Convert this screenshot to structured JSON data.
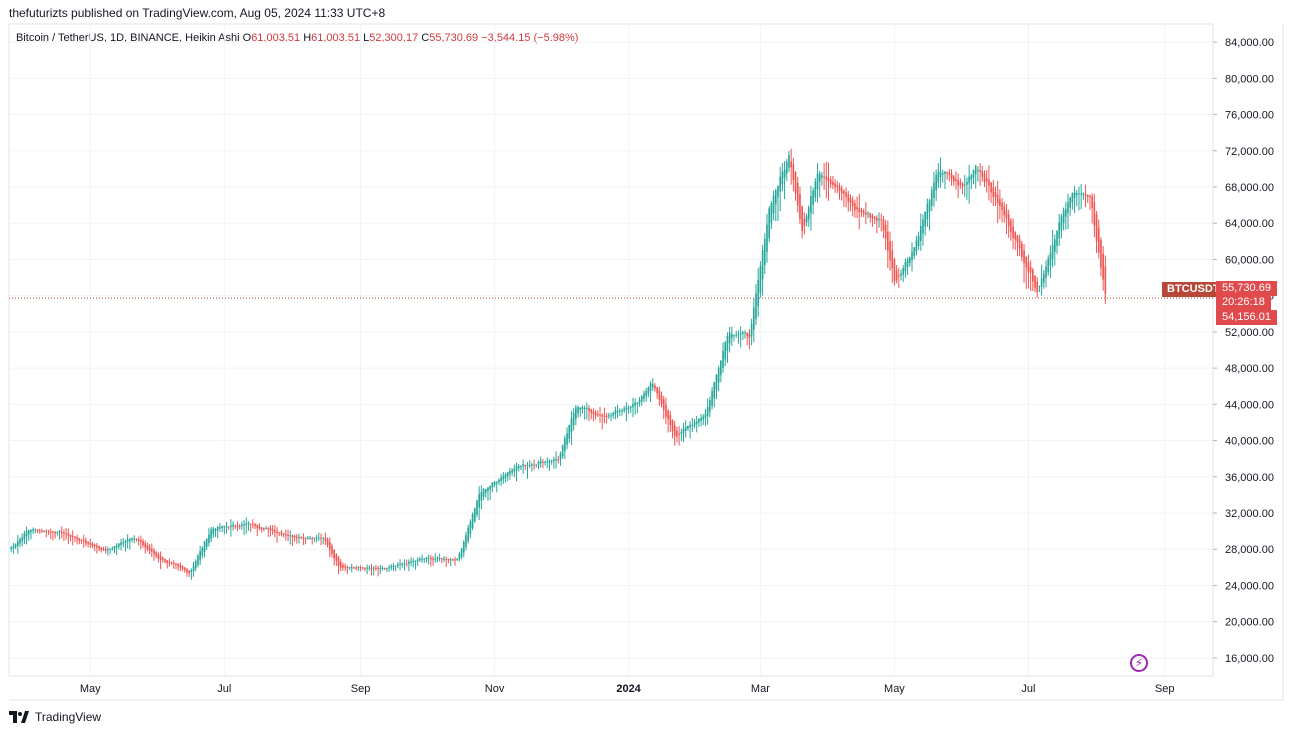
{
  "header": {
    "caption": "thefuturizts published on TradingView.com, Aug 05, 2024 11:33 UTC+8"
  },
  "legend": {
    "symbol": "Bitcoin / TetherUS, 1D, BINANCE, Heikin Ashi",
    "o_label": "O",
    "o_value": "61,003.51",
    "h_label": "H",
    "h_value": "61,003.51",
    "l_label": "L",
    "l_value": "52,300.17",
    "c_label": "C",
    "c_value": "55,730.69",
    "change": "−3,544.15 (−5.98%)"
  },
  "price_scale": {
    "ticker_badge": "BTCUSDT",
    "last_price": "55,730.69",
    "countdown": "20:26:18",
    "low_marker": "54,156.01"
  },
  "footer": {
    "brand": "TradingView"
  },
  "colors": {
    "up": "#26a69a",
    "down": "#ef5350",
    "grid": "#f0f3fa",
    "axis_text": "#131722",
    "price_line": "#b8473a",
    "accent": "#9c27b0"
  },
  "icons": {
    "brand": "tradingview-logo-icon",
    "alert": "lightning-bolt-icon"
  },
  "chart_data": {
    "type": "candlestick",
    "subtype": "heikin-ashi",
    "y_ticks": [
      "84,000.00",
      "80,000.00",
      "76,000.00",
      "72,000.00",
      "68,000.00",
      "64,000.00",
      "60,000.00",
      "56,000.00",
      "52,000.00",
      "48,000.00",
      "44,000.00",
      "40,000.00",
      "36,000.00",
      "32,000.00",
      "28,000.00",
      "24,000.00",
      "20,000.00",
      "16,000.00"
    ],
    "ylim": [
      14000,
      86000
    ],
    "x_ticks": [
      {
        "label": "May",
        "date": "2023-05-01"
      },
      {
        "label": "Jul",
        "date": "2023-07-01"
      },
      {
        "label": "Sep",
        "date": "2023-09-01"
      },
      {
        "label": "Nov",
        "date": "2023-11-01"
      },
      {
        "label": "2024",
        "date": "2024-01-01",
        "bold": true
      },
      {
        "label": "Mar",
        "date": "2024-03-01"
      },
      {
        "label": "May",
        "date": "2024-05-01"
      },
      {
        "label": "Jul",
        "date": "2024-07-01"
      },
      {
        "label": "Sep",
        "date": "2024-09-01"
      }
    ],
    "x_range": [
      "2023-03-25",
      "2024-09-23"
    ],
    "last_price": 55730.69,
    "anchors": [
      [
        "2023-03-25",
        28000
      ],
      [
        "2023-04-03",
        30200
      ],
      [
        "2023-04-18",
        29800
      ],
      [
        "2023-05-08",
        27800
      ],
      [
        "2023-05-20",
        29400
      ],
      [
        "2023-06-01",
        27000
      ],
      [
        "2023-06-15",
        25400
      ],
      [
        "2023-06-25",
        30300
      ],
      [
        "2023-07-12",
        30800
      ],
      [
        "2023-08-01",
        29400
      ],
      [
        "2023-08-15",
        29200
      ],
      [
        "2023-08-22",
        26100
      ],
      [
        "2023-09-11",
        25800
      ],
      [
        "2023-09-30",
        27000
      ],
      [
        "2023-10-15",
        26900
      ],
      [
        "2023-10-25",
        34200
      ],
      [
        "2023-11-10",
        37100
      ],
      [
        "2023-11-30",
        38000
      ],
      [
        "2023-12-08",
        44000
      ],
      [
        "2023-12-20",
        42500
      ],
      [
        "2024-01-05",
        44200
      ],
      [
        "2024-01-11",
        46500
      ],
      [
        "2024-01-22",
        40500
      ],
      [
        "2024-02-05",
        43000
      ],
      [
        "2024-02-15",
        52000
      ],
      [
        "2024-02-25",
        51600
      ],
      [
        "2024-03-05",
        66000
      ],
      [
        "2024-03-14",
        71500
      ],
      [
        "2024-03-20",
        63000
      ],
      [
        "2024-03-27",
        70000
      ],
      [
        "2024-04-05",
        67800
      ],
      [
        "2024-04-13",
        65500
      ],
      [
        "2024-04-25",
        64200
      ],
      [
        "2024-05-01",
        57500
      ],
      [
        "2024-05-10",
        61500
      ],
      [
        "2024-05-21",
        70000
      ],
      [
        "2024-06-01",
        67900
      ],
      [
        "2024-06-07",
        70500
      ],
      [
        "2024-06-20",
        64800
      ],
      [
        "2024-07-05",
        56500
      ],
      [
        "2024-07-15",
        64200
      ],
      [
        "2024-07-22",
        67800
      ],
      [
        "2024-07-29",
        66500
      ],
      [
        "2024-08-05",
        55730
      ]
    ]
  }
}
